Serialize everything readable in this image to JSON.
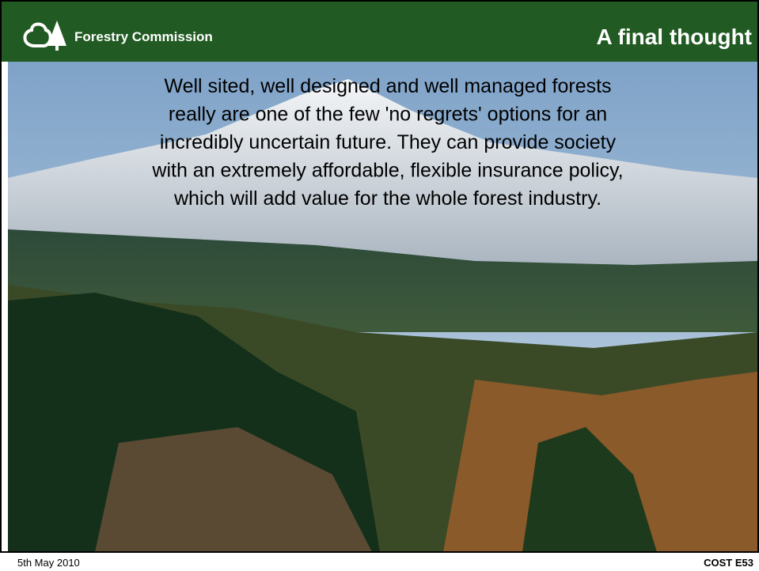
{
  "header": {
    "logo_text": "Forestry Commission",
    "title": "A final thought"
  },
  "body": {
    "lines": [
      "Well sited, well designed and well managed forests",
      "really are one of the few 'no regrets' options for an",
      "incredibly uncertain future. They can provide society",
      "with an extremely affordable, flexible insurance policy,",
      "which will add value for the whole forest industry."
    ]
  },
  "footer": {
    "date": "5th May 2010",
    "code": "COST E53"
  }
}
